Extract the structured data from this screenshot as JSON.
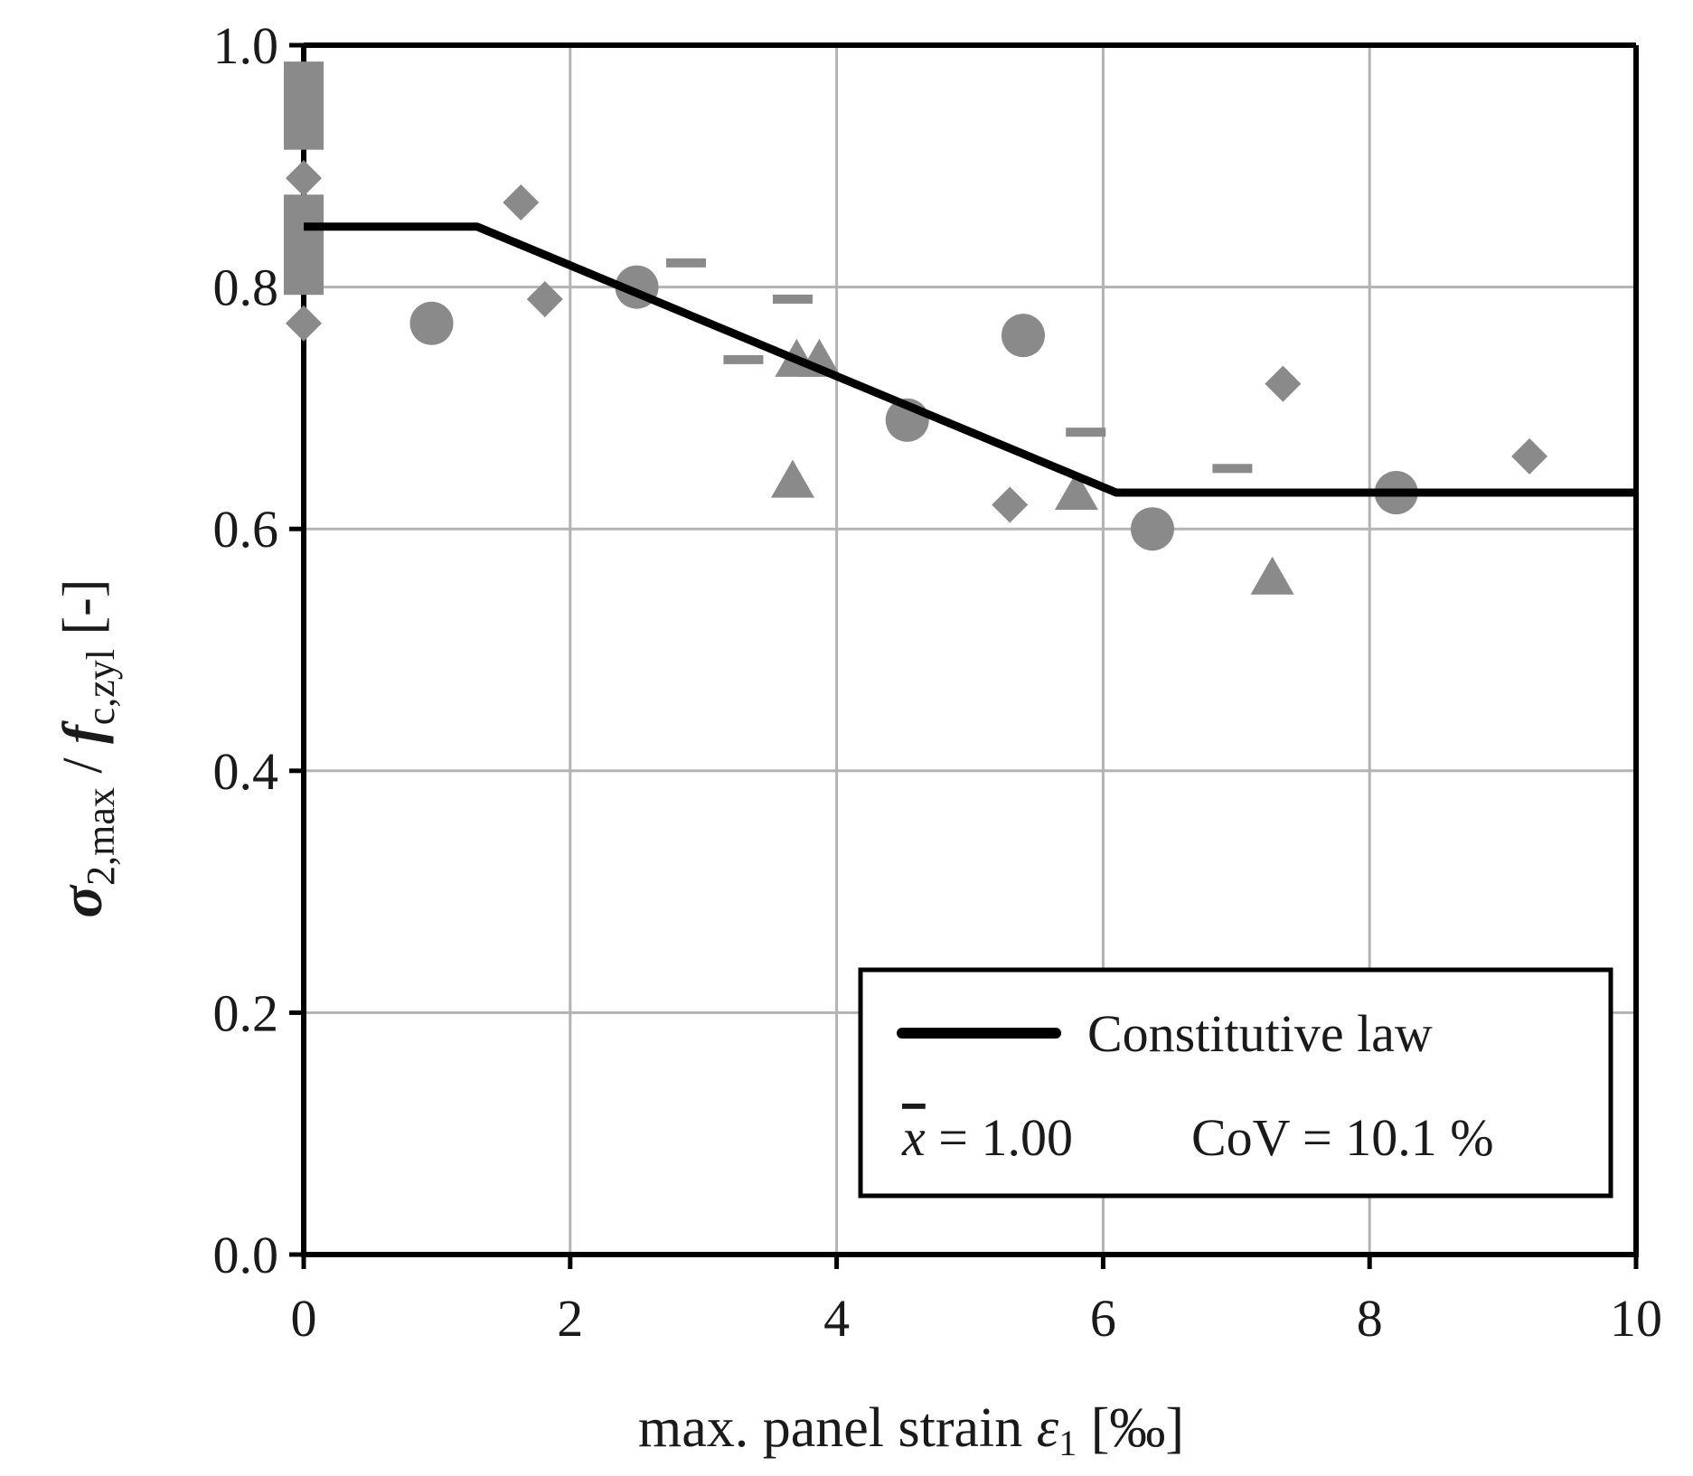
{
  "chart_data": {
    "type": "scatter",
    "xlabel": {
      "text": "max. panel strain ",
      "symbol": "ε",
      "sub": "1",
      "unit": " [‰]"
    },
    "ylabel": {
      "symbol": "σ",
      "sub": "2,max",
      "divider": " / ",
      "f_symbol": "f",
      "f_sub": "c,zyl",
      "unit": " [-]"
    },
    "xlim": [
      0,
      10
    ],
    "ylim": [
      0,
      1
    ],
    "x_ticks": [
      0,
      2,
      4,
      6,
      8,
      10
    ],
    "x_tick_labels": [
      "0",
      "2",
      "4",
      "6",
      "8",
      "10"
    ],
    "y_ticks": [
      0,
      0.2,
      0.4,
      0.6,
      0.8,
      1.0
    ],
    "y_tick_labels": [
      "0.0",
      "0.2",
      "0.4",
      "0.6",
      "0.8",
      "1.0"
    ],
    "grid": true,
    "colors": {
      "markers": "#8a8a8a",
      "line": "#000000",
      "grid": "#b3b3b3",
      "axes": "#000000"
    },
    "series": [
      {
        "name": "squares",
        "marker": "square",
        "points": [
          {
            "x": 0,
            "y": 0.97
          },
          {
            "x": 0,
            "y": 0.96
          },
          {
            "x": 0,
            "y": 0.95
          },
          {
            "x": 0,
            "y": 0.94
          },
          {
            "x": 0,
            "y": 0.93
          },
          {
            "x": 0,
            "y": 0.86
          },
          {
            "x": 0,
            "y": 0.85
          },
          {
            "x": 0,
            "y": 0.83
          },
          {
            "x": 0,
            "y": 0.82
          },
          {
            "x": 0,
            "y": 0.81
          }
        ]
      },
      {
        "name": "diamonds",
        "marker": "diamond",
        "points": [
          {
            "x": 0,
            "y": 0.89
          },
          {
            "x": 0,
            "y": 0.77
          },
          {
            "x": 1.63,
            "y": 0.87
          },
          {
            "x": 1.81,
            "y": 0.79
          },
          {
            "x": 5.3,
            "y": 0.62
          },
          {
            "x": 7.35,
            "y": 0.72
          },
          {
            "x": 9.2,
            "y": 0.66
          }
        ]
      },
      {
        "name": "circles",
        "marker": "circle",
        "points": [
          {
            "x": 0.96,
            "y": 0.77
          },
          {
            "x": 2.5,
            "y": 0.8
          },
          {
            "x": 4.53,
            "y": 0.69
          },
          {
            "x": 5.4,
            "y": 0.76
          },
          {
            "x": 6.37,
            "y": 0.6
          },
          {
            "x": 8.2,
            "y": 0.63
          }
        ]
      },
      {
        "name": "triangles",
        "marker": "triangle",
        "points": [
          {
            "x": 3.7,
            "y": 0.74
          },
          {
            "x": 3.87,
            "y": 0.74
          },
          {
            "x": 3.67,
            "y": 0.64
          },
          {
            "x": 5.8,
            "y": 0.63
          },
          {
            "x": 7.27,
            "y": 0.56
          }
        ]
      },
      {
        "name": "dashes",
        "marker": "dash",
        "points": [
          {
            "x": 2.87,
            "y": 0.82
          },
          {
            "x": 3.67,
            "y": 0.79
          },
          {
            "x": 3.3,
            "y": 0.74
          },
          {
            "x": 5.87,
            "y": 0.68
          },
          {
            "x": 6.97,
            "y": 0.65
          }
        ]
      }
    ],
    "line": {
      "name": "Constitutive law",
      "x": [
        0,
        1.3,
        6.1,
        10
      ],
      "y": [
        0.85,
        0.85,
        0.63,
        0.63
      ]
    },
    "legend": {
      "position": "bottom-right",
      "entry": "Constitutive law",
      "xbar_symbol": "x",
      "xbar_value": " = 1.00",
      "cov_text": "CoV = 10.1 %"
    }
  }
}
